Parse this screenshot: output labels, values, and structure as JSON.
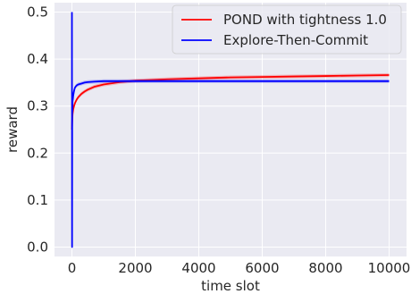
{
  "chart_data": {
    "type": "line",
    "xlabel": "time slot",
    "ylabel": "reward",
    "xlim": [
      -550,
      10550
    ],
    "ylim": [
      -0.02,
      0.52
    ],
    "x_ticks": [
      0,
      2000,
      4000,
      6000,
      8000,
      10000
    ],
    "y_ticks": [
      0.0,
      0.1,
      0.2,
      0.3,
      0.4,
      0.5
    ],
    "x_tick_labels": [
      "0",
      "2000",
      "4000",
      "6000",
      "8000",
      "10000"
    ],
    "y_tick_labels": [
      "0.0",
      "0.1",
      "0.2",
      "0.3",
      "0.4",
      "0.5"
    ],
    "grid": true,
    "background": "#eaeaf2",
    "legend_position": "top-right",
    "series": [
      {
        "name": "POND with tightness 1.0",
        "color": "#ff0000",
        "band": 0.004,
        "x": [
          0,
          5,
          10,
          20,
          40,
          70,
          100,
          150,
          200,
          300,
          400,
          500,
          700,
          1000,
          1500,
          2000,
          3000,
          4000,
          5000,
          6000,
          7000,
          8000,
          9000,
          10000
        ],
        "y": [
          0.25,
          0.262,
          0.272,
          0.283,
          0.293,
          0.301,
          0.307,
          0.314,
          0.319,
          0.326,
          0.331,
          0.335,
          0.341,
          0.346,
          0.351,
          0.354,
          0.357,
          0.359,
          0.361,
          0.362,
          0.363,
          0.364,
          0.365,
          0.366
        ]
      },
      {
        "name": "Explore-Then-Commit",
        "color": "#0000ff",
        "band": 0.004,
        "x": [
          0,
          4,
          8,
          12,
          16,
          20,
          30,
          40,
          60,
          80,
          100,
          150,
          200,
          300,
          400,
          500,
          700,
          1000,
          1500,
          2000,
          4000,
          6000,
          8000,
          10000
        ],
        "y": [
          0.5,
          0.0,
          0.28,
          0.3,
          0.29,
          0.31,
          0.315,
          0.322,
          0.33,
          0.336,
          0.34,
          0.344,
          0.346,
          0.348,
          0.35,
          0.351,
          0.352,
          0.353,
          0.353,
          0.353,
          0.353,
          0.353,
          0.353,
          0.353
        ]
      }
    ]
  }
}
